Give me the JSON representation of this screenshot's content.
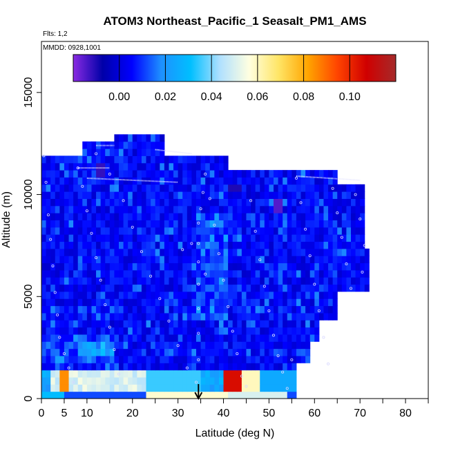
{
  "chart_data": {
    "type": "heatmap",
    "title": "ATOM3 Northeast_Pacific_1 Seasalt_PM1_AMS",
    "flights_text": "Flts: 1,2",
    "date_text": "MMDD: 0928,1001",
    "xlabel": "Latitude (deg N)",
    "ylabel": "Altitude (m)",
    "xlim": [
      0,
      85
    ],
    "ylim": [
      0,
      17500
    ],
    "x_ticks": [
      0,
      5,
      10,
      20,
      30,
      40,
      50,
      60,
      70,
      80
    ],
    "x_minor_ticks": [
      15,
      25,
      35,
      45,
      55,
      65,
      75,
      85
    ],
    "y_ticks": [
      0,
      5000,
      10000,
      15000
    ],
    "colorbar": {
      "ticks": [
        "0.00",
        "0.02",
        "0.04",
        "0.06",
        "0.08",
        "0.10"
      ],
      "tick_values": [
        0.0,
        0.02,
        0.04,
        0.06,
        0.08,
        0.1
      ],
      "range": [
        -0.02,
        0.12
      ],
      "colors": [
        "#8a2be2",
        "#0000a8",
        "#0000ff",
        "#1e90ff",
        "#00bfff",
        "#b0e0ff",
        "#ffffe0",
        "#ffe566",
        "#ffa500",
        "#ff4500",
        "#d00000",
        "#a52a2a"
      ]
    },
    "arrow_marker_latitude": 34.5,
    "flight_track_points": [
      [
        0.5,
        11900
      ],
      [
        1,
        10600
      ],
      [
        1.5,
        9000
      ],
      [
        2,
        7800
      ],
      [
        2.5,
        6500
      ],
      [
        3,
        5200
      ],
      [
        3.5,
        4100
      ],
      [
        4,
        3000
      ],
      [
        5,
        2200
      ],
      [
        6,
        1500
      ],
      [
        7,
        800
      ],
      [
        8,
        11300
      ],
      [
        9,
        10400
      ],
      [
        10,
        9200
      ],
      [
        11,
        8100
      ],
      [
        12,
        6900
      ],
      [
        13,
        5800
      ],
      [
        14,
        4600
      ],
      [
        15,
        3500
      ],
      [
        16,
        2400
      ],
      [
        17,
        1200
      ],
      [
        12,
        12000
      ],
      [
        15,
        11000
      ],
      [
        18,
        9700
      ],
      [
        20,
        8400
      ],
      [
        22,
        7200
      ],
      [
        24,
        6000
      ],
      [
        26,
        4900
      ],
      [
        28,
        3800
      ],
      [
        30,
        2600
      ],
      [
        32,
        1500
      ],
      [
        34,
        800
      ],
      [
        34.5,
        1900
      ],
      [
        34.5,
        3200
      ],
      [
        34.5,
        4400
      ],
      [
        34.5,
        5600
      ],
      [
        34.5,
        6700
      ],
      [
        34.5,
        7600
      ],
      [
        34.5,
        8600
      ],
      [
        35,
        9300
      ],
      [
        35.5,
        10100
      ],
      [
        36,
        11000
      ],
      [
        37,
        9800
      ],
      [
        38,
        8500
      ],
      [
        39,
        7100
      ],
      [
        40,
        5800
      ],
      [
        41,
        4500
      ],
      [
        42,
        3300
      ],
      [
        43,
        2200
      ],
      [
        44,
        1100
      ],
      [
        45,
        600
      ],
      [
        46,
        9700
      ],
      [
        47,
        8200
      ],
      [
        48,
        6800
      ],
      [
        49,
        5500
      ],
      [
        50,
        4300
      ],
      [
        51,
        3100
      ],
      [
        52,
        2100
      ],
      [
        53,
        1300
      ],
      [
        54,
        500
      ],
      [
        55,
        1900
      ],
      [
        56,
        10800
      ],
      [
        57,
        9600
      ],
      [
        58,
        8300
      ],
      [
        59,
        7000
      ],
      [
        60,
        5600
      ],
      [
        61,
        4300
      ],
      [
        62,
        3000
      ],
      [
        63,
        1700
      ],
      [
        64,
        10300
      ],
      [
        65,
        9100
      ],
      [
        66,
        7900
      ],
      [
        67,
        6600
      ],
      [
        68,
        5400
      ],
      [
        69,
        10000
      ],
      [
        70,
        8800
      ],
      [
        71,
        7500
      ],
      [
        70.5,
        6200
      ],
      [
        36,
        6100
      ],
      [
        33,
        7600
      ],
      [
        31,
        7300
      ]
    ]
  }
}
